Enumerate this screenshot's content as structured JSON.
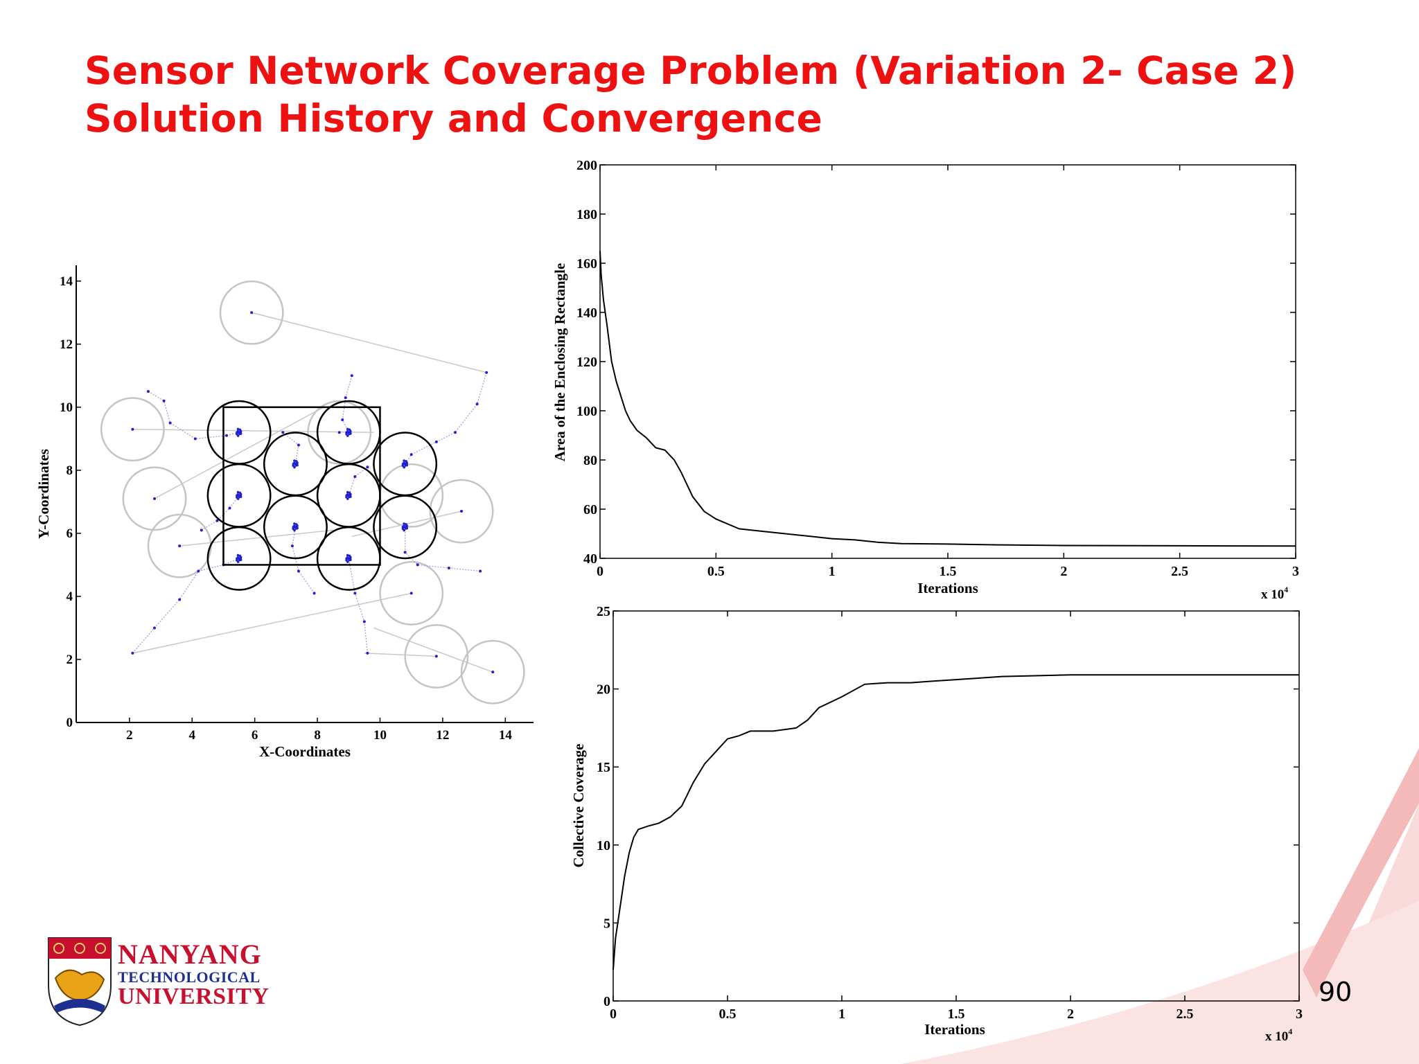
{
  "slide": {
    "title_line1": "Sensor Network Coverage Problem (Variation 2- Case 2)",
    "title_line2": "Solution History and Convergence",
    "page_number": "90",
    "logo": {
      "line1": "NANYANG",
      "line2": "TECHNOLOGICAL",
      "line3": "UNIVERSITY"
    },
    "colors": {
      "title": "#ee1111",
      "swoosh": "#f6c9c9",
      "trail": "#2020cc"
    }
  },
  "chart_data": [
    {
      "type": "scatter",
      "xlabel": "X-Coordinates",
      "ylabel": "Y-Coordinates",
      "xlim": [
        0.3,
        14.9
      ],
      "ylim": [
        0,
        14.5
      ],
      "xticks": [
        "2",
        "4",
        "6",
        "8",
        "10",
        "12",
        "14"
      ],
      "yticks": [
        "0",
        "2",
        "4",
        "6",
        "8",
        "10",
        "12",
        "14"
      ],
      "enclosing_rectangle": {
        "x": [
          5,
          10
        ],
        "y": [
          5,
          10
        ]
      },
      "sensor_radius": 1,
      "final_sensors": [
        [
          5.5,
          9.2
        ],
        [
          7.3,
          8.2
        ],
        [
          9.0,
          9.2
        ],
        [
          10.8,
          8.2
        ],
        [
          5.5,
          7.2
        ],
        [
          9.0,
          7.2
        ],
        [
          7.3,
          6.2
        ],
        [
          10.8,
          6.2
        ],
        [
          5.5,
          5.2
        ],
        [
          9.0,
          5.2
        ]
      ],
      "initial_sensors": [
        [
          5.9,
          13.0
        ],
        [
          2.1,
          9.3
        ],
        [
          2.8,
          7.1
        ],
        [
          3.6,
          5.6
        ],
        [
          8.7,
          9.2
        ],
        [
          11.0,
          7.2
        ],
        [
          12.6,
          6.7
        ],
        [
          11.0,
          4.1
        ],
        [
          11.8,
          2.1
        ],
        [
          13.6,
          1.6
        ]
      ],
      "trails": [
        [
          [
            13.4,
            11.1
          ],
          [
            13.1,
            10.1
          ],
          [
            12.4,
            9.2
          ],
          [
            11.8,
            8.9
          ],
          [
            11.0,
            8.5
          ],
          [
            10.8,
            8.2
          ]
        ],
        [
          [
            2.1,
            2.2
          ],
          [
            2.8,
            3.0
          ],
          [
            3.6,
            3.9
          ],
          [
            4.2,
            4.8
          ],
          [
            5.0,
            5.0
          ],
          [
            5.5,
            5.2
          ]
        ],
        [
          [
            2.6,
            10.5
          ],
          [
            3.1,
            10.2
          ],
          [
            3.3,
            9.5
          ],
          [
            4.1,
            9.0
          ],
          [
            5.1,
            9.1
          ],
          [
            5.5,
            9.2
          ]
        ],
        [
          [
            9.1,
            11.0
          ],
          [
            8.9,
            10.3
          ],
          [
            8.8,
            9.6
          ],
          [
            9.0,
            9.2
          ]
        ],
        [
          [
            9.6,
            2.2
          ],
          [
            9.5,
            3.2
          ],
          [
            9.2,
            4.1
          ],
          [
            9.0,
            5.2
          ]
        ],
        [
          [
            13.2,
            4.8
          ],
          [
            12.2,
            4.9
          ],
          [
            11.2,
            5.0
          ],
          [
            10.8,
            5.4
          ],
          [
            10.8,
            6.2
          ]
        ],
        [
          [
            7.9,
            4.1
          ],
          [
            7.4,
            4.8
          ],
          [
            7.2,
            5.6
          ],
          [
            7.3,
            6.2
          ]
        ],
        [
          [
            4.3,
            6.1
          ],
          [
            4.8,
            6.4
          ],
          [
            5.2,
            6.8
          ],
          [
            5.5,
            7.2
          ]
        ],
        [
          [
            6.9,
            9.2
          ],
          [
            7.4,
            8.8
          ],
          [
            7.3,
            8.2
          ]
        ],
        [
          [
            9.6,
            8.1
          ],
          [
            9.2,
            7.8
          ],
          [
            9.0,
            7.2
          ]
        ]
      ],
      "moves": [
        [
          [
            5.9,
            13.0
          ],
          [
            13.4,
            11.1
          ]
        ],
        [
          [
            2.1,
            9.3
          ],
          [
            9.8,
            9.2
          ]
        ],
        [
          [
            2.8,
            7.1
          ],
          [
            8.2,
            10.0
          ]
        ],
        [
          [
            3.6,
            5.6
          ],
          [
            8.5,
            6.1
          ]
        ],
        [
          [
            12.6,
            6.7
          ],
          [
            9.1,
            5.9
          ]
        ],
        [
          [
            11.0,
            4.1
          ],
          [
            2.1,
            2.2
          ]
        ],
        [
          [
            11.8,
            2.1
          ],
          [
            9.5,
            2.2
          ]
        ],
        [
          [
            13.6,
            1.6
          ],
          [
            9.8,
            3.0
          ]
        ]
      ]
    },
    {
      "type": "line",
      "xlabel": "Iterations",
      "ylabel": "Area of the Enclosing Rectangle",
      "xlim": [
        0,
        30000
      ],
      "ylim": [
        40,
        200
      ],
      "x_multiplier": "x 10",
      "x_multiplier_exp": "4",
      "xticks": [
        "0",
        "0.5",
        "1",
        "1.5",
        "2",
        "2.5",
        "3"
      ],
      "yticks": [
        "40",
        "60",
        "80",
        "100",
        "120",
        "140",
        "160",
        "180",
        "200"
      ],
      "series": [
        {
          "x": [
            0,
            50,
            150,
            300,
            500,
            700,
            900,
            1100,
            1300,
            1600,
            2000,
            2400,
            2800,
            3000,
            3200,
            3500,
            4000,
            4500,
            5000,
            5500,
            6000,
            7000,
            8000,
            9000,
            10000,
            11000,
            12000,
            13000,
            15000,
            17000,
            20000,
            25000,
            30000
          ],
          "y": [
            165,
            155,
            145,
            135,
            120,
            112,
            106,
            100,
            96,
            92,
            89,
            85,
            84,
            82,
            80,
            75,
            65,
            59,
            56,
            54,
            52,
            51,
            50,
            49,
            48,
            47.5,
            46.5,
            46,
            45.8,
            45.5,
            45.2,
            45.1,
            45
          ]
        }
      ]
    },
    {
      "type": "line",
      "xlabel": "Iterations",
      "ylabel": "Collective Coverage",
      "xlim": [
        0,
        30000
      ],
      "ylim": [
        0,
        25
      ],
      "x_multiplier": "x 10",
      "x_multiplier_exp": "4",
      "xticks": [
        "0",
        "0.5",
        "1",
        "1.5",
        "2",
        "2.5",
        "3"
      ],
      "yticks": [
        "0",
        "5",
        "10",
        "15",
        "20",
        "25"
      ],
      "series": [
        {
          "x": [
            0,
            100,
            300,
            500,
            700,
            900,
            1100,
            1500,
            2000,
            2500,
            3000,
            3500,
            4000,
            4500,
            5000,
            5500,
            6000,
            7000,
            8000,
            8500,
            9000,
            10000,
            11000,
            12000,
            13000,
            14000,
            15000,
            17000,
            20000,
            25000,
            30000
          ],
          "y": [
            2,
            4,
            6,
            8,
            9.5,
            10.5,
            11,
            11.2,
            11.4,
            11.8,
            12.5,
            14,
            15.2,
            16,
            16.8,
            17,
            17.3,
            17.3,
            17.5,
            18,
            18.8,
            19.5,
            20.3,
            20.4,
            20.4,
            20.5,
            20.6,
            20.8,
            20.9,
            20.9,
            20.9
          ]
        }
      ]
    }
  ]
}
